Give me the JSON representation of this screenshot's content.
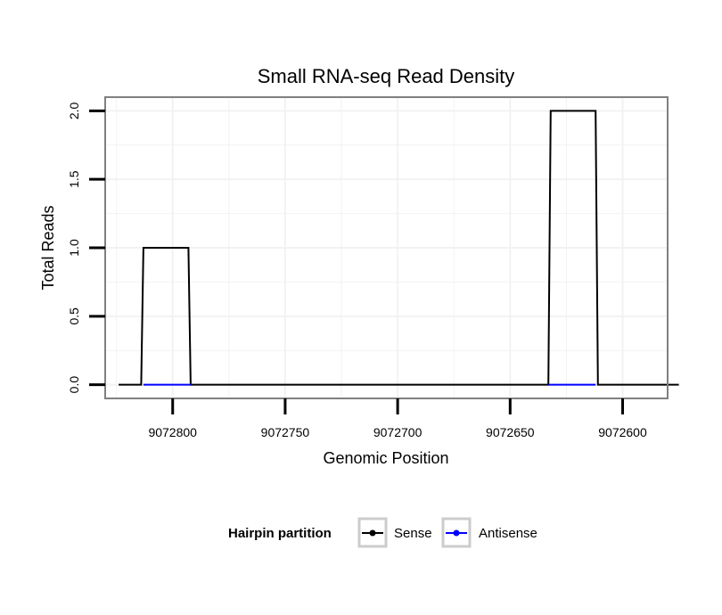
{
  "chart_data": {
    "type": "line",
    "title": "Small RNA-seq Read Density",
    "xlabel": "Genomic Position",
    "ylabel": "Total Reads",
    "x_reversed": true,
    "xlim": [
      9072830,
      9072580
    ],
    "ylim": [
      -0.1,
      2.1
    ],
    "x_ticks": [
      9072800,
      9072750,
      9072700,
      9072650,
      9072600
    ],
    "x_tick_labels": [
      "9072800",
      "9072750",
      "9072700",
      "9072650",
      "9072600"
    ],
    "y_ticks": [
      0,
      0.5,
      1,
      1.5,
      2
    ],
    "y_tick_labels": [
      "0.0",
      "0.5",
      "1.0",
      "1.5",
      "2.0"
    ],
    "grid": true,
    "legend": {
      "title": "Hairpin partition",
      "position": "bottom",
      "entries": [
        {
          "name": "Sense",
          "color": "#000000"
        },
        {
          "name": "Antisense",
          "color": "#0000ff"
        }
      ]
    },
    "series": [
      {
        "name": "Sense",
        "color": "#000000",
        "x": [
          9072824,
          9072814,
          9072813,
          9072793,
          9072792,
          9072633,
          9072632,
          9072612,
          9072611,
          9072575
        ],
        "y": [
          0,
          0,
          1,
          1,
          0,
          0,
          2,
          2,
          0,
          0
        ]
      },
      {
        "name": "Antisense",
        "color": "#0000ff",
        "x": [
          9072813,
          9072792,
          9072633,
          9072612
        ],
        "y": [
          0,
          0,
          0,
          0
        ],
        "segments": [
          [
            0,
            1
          ],
          [
            2,
            3
          ]
        ]
      }
    ]
  }
}
